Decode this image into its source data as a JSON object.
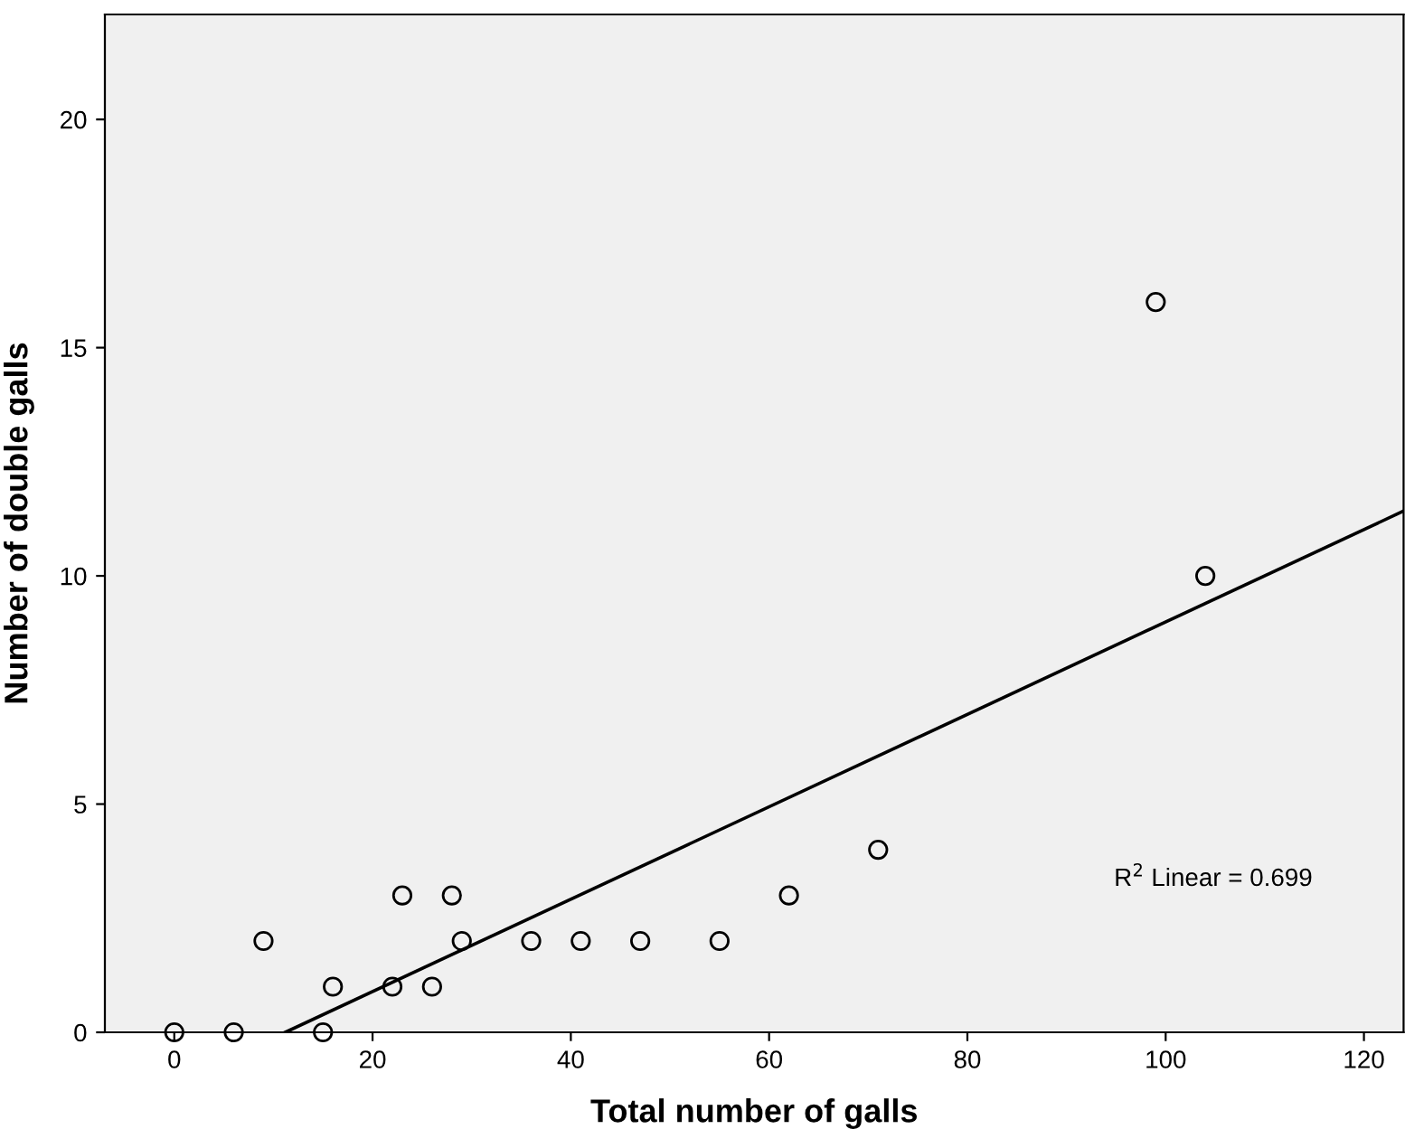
{
  "chart_data": {
    "type": "scatter",
    "xlabel": "Total number of galls",
    "ylabel": "Number of double galls",
    "series": [
      {
        "color": "#000000",
        "marker": "circle",
        "x": [
          0,
          6,
          9,
          15,
          16,
          22,
          23,
          26,
          28,
          29,
          36,
          41,
          47,
          55,
          62,
          71,
          99,
          104
        ],
        "values": [
          0,
          0,
          2,
          0,
          1,
          1,
          3,
          1,
          3,
          2,
          2,
          2,
          2,
          2,
          3,
          4,
          16,
          10
        ]
      },
      {
        "type": "line",
        "color": "#000000",
        "x": [
          11.2,
          124
        ],
        "values": [
          0,
          11.42
        ]
      }
    ],
    "annotations": [
      "R$^{2}$ Linear = 0.699"
    ],
    "xlim": [
      -7,
      124
    ],
    "ylim": [
      0,
      22.3
    ],
    "xticks": [
      0,
      20,
      40,
      60,
      80,
      100,
      120
    ],
    "yticks": [
      0,
      5,
      10,
      15,
      20
    ],
    "grid": false,
    "legend": false
  }
}
